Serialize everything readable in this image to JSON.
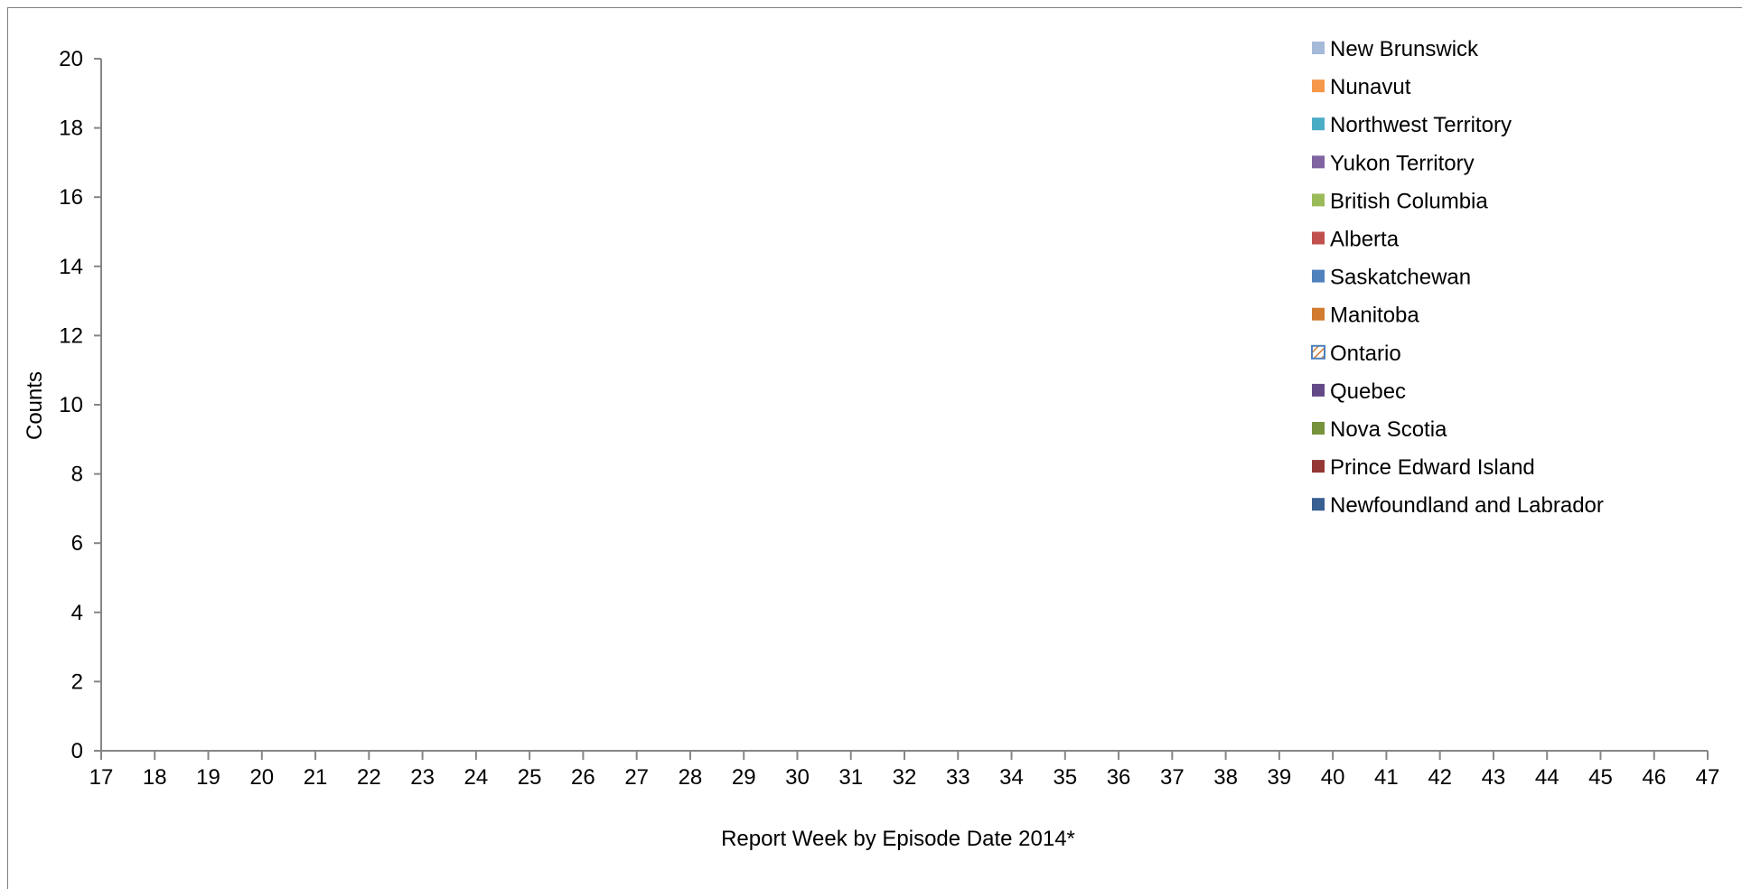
{
  "chart_data": {
    "type": "bar",
    "stacked": true,
    "xlabel": "Report Week by Episode Date 2014*",
    "ylabel": "Counts",
    "ylim": [
      0,
      20
    ],
    "yticks": [
      0,
      2,
      4,
      6,
      8,
      10,
      12,
      14,
      16,
      18,
      20
    ],
    "xlim": [
      17,
      47
    ],
    "xticks": [
      17,
      18,
      19,
      20,
      21,
      22,
      23,
      24,
      25,
      26,
      27,
      28,
      29,
      30,
      31,
      32,
      33,
      34,
      35,
      36,
      37,
      38,
      39,
      40,
      41,
      42,
      43,
      44,
      45,
      46,
      47
    ],
    "grid": false,
    "legend_position": "top-right",
    "series": [
      {
        "name": "New Brunswick",
        "color": "#a5b9d9",
        "values": []
      },
      {
        "name": "Nunavut",
        "color": "#f6984a",
        "values": []
      },
      {
        "name": "Northwest Territory",
        "color": "#4bacc6",
        "values": []
      },
      {
        "name": "Yukon Territory",
        "color": "#8064a2",
        "values": []
      },
      {
        "name": "British Columbia",
        "color": "#9bbb59",
        "values": []
      },
      {
        "name": "Alberta",
        "color": "#c0504d",
        "values": []
      },
      {
        "name": "Saskatchewan",
        "color": "#4f81bd",
        "values": []
      },
      {
        "name": "Manitoba",
        "color": "#d07b2f",
        "values": []
      },
      {
        "name": "Ontario",
        "color": "#4f81bd",
        "pattern": "hatched",
        "values": []
      },
      {
        "name": "Quebec",
        "color": "#634987",
        "values": []
      },
      {
        "name": "Nova Scotia",
        "color": "#77933c",
        "values": []
      },
      {
        "name": "Prince Edward Island",
        "color": "#953735",
        "values": []
      },
      {
        "name": "Newfoundland and Labrador",
        "color": "#375f92",
        "values": []
      }
    ]
  }
}
